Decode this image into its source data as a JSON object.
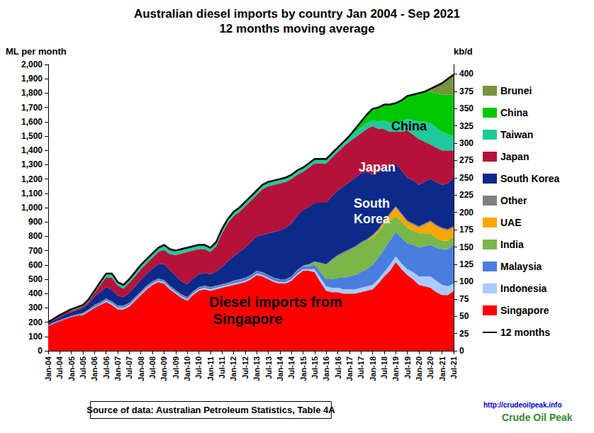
{
  "chart_data": {
    "type": "area",
    "title": "Australian diesel imports by country Jan 2004 - Sep 2021",
    "subtitle": "12 months moving average",
    "y_label": "ML per month",
    "y2_label": "kb/d",
    "stacked": true,
    "grid": false,
    "legend": "right",
    "categories": [
      "Jan-04",
      null,
      "Jul-04",
      null,
      "Jan-05",
      null,
      "Jul-05",
      null,
      "Jan-06",
      null,
      "Jul-06",
      null,
      "Jan-07",
      null,
      "Jul-07",
      null,
      "Jan-08",
      null,
      "Jul-08",
      null,
      "Jan-09",
      null,
      "Jul-09",
      null,
      "Jan-10",
      null,
      "Jul-10",
      null,
      "Jan-11",
      null,
      "Jul-11",
      null,
      "Jan-12",
      null,
      "Jul-12",
      null,
      "Jan-13",
      null,
      "Jul-13",
      null,
      "Jan-14",
      null,
      "Jul-14",
      null,
      "Jan-15",
      null,
      "Jul-15",
      null,
      "Jan-16",
      null,
      "Jul-16",
      null,
      "Jan-17",
      null,
      "Jul-17",
      null,
      "Jan-18",
      null,
      "Jul-18",
      null,
      "Jan-19",
      null,
      "Jul-19",
      null,
      "Jan-20",
      null,
      "Jul-20",
      null,
      "Jan-21",
      null,
      "Jul-21"
    ],
    "ylim": [
      0,
      2000
    ],
    "yticks": [
      0,
      100,
      200,
      300,
      400,
      500,
      600,
      700,
      800,
      900,
      {
        "value": 1000,
        "label": "1,000"
      },
      {
        "value": 1100,
        "label": "1,100"
      },
      {
        "value": 1200,
        "label": "1,200"
      },
      {
        "value": 1300,
        "label": "1,300"
      },
      {
        "value": 1400,
        "label": "1,400"
      },
      {
        "value": 1500,
        "label": "1,500"
      },
      {
        "value": 1600,
        "label": "1,600"
      },
      {
        "value": 1700,
        "label": "1,700"
      },
      {
        "value": 1800,
        "label": "1,800"
      },
      {
        "value": 1900,
        "label": "1,900"
      },
      {
        "value": 2000,
        "label": "2,000"
      }
    ],
    "y2lim": [
      0,
      413.7
    ],
    "y2ticks": [
      0,
      25,
      50,
      75,
      100,
      125,
      150,
      175,
      200,
      225,
      250,
      275,
      300,
      325,
      350,
      375,
      400
    ],
    "series": [
      {
        "name": "Brunei",
        "type": "area",
        "color": "#77933c",
        "values": [
          0,
          0,
          0,
          0,
          0,
          0,
          0,
          0,
          0,
          0,
          0,
          0,
          0,
          0,
          0,
          0,
          0,
          0,
          0,
          0,
          0,
          0,
          0,
          0,
          0,
          0,
          0,
          0,
          0,
          0,
          0,
          0,
          0,
          0,
          0,
          0,
          0,
          0,
          0,
          0,
          0,
          0,
          0,
          0,
          0,
          0,
          0,
          0,
          0,
          0,
          0,
          0,
          0,
          0,
          0,
          0,
          0,
          0,
          0,
          0,
          0,
          0,
          0,
          0,
          0,
          0,
          20,
          50,
          80,
          110,
          140
        ]
      },
      {
        "name": "China",
        "type": "area",
        "color": "#00c800",
        "values": [
          0,
          0,
          0,
          0,
          0,
          0,
          0,
          0,
          0,
          0,
          0,
          0,
          0,
          0,
          0,
          0,
          0,
          0,
          0,
          0,
          0,
          0,
          0,
          0,
          0,
          0,
          0,
          0,
          0,
          0,
          0,
          0,
          0,
          0,
          0,
          0,
          0,
          0,
          0,
          0,
          0,
          0,
          0,
          0,
          0,
          0,
          0,
          0,
          0,
          0,
          0,
          0,
          10,
          20,
          40,
          60,
          80,
          100,
          110,
          130,
          140,
          150,
          160,
          180,
          200,
          210,
          220,
          240,
          260,
          280,
          290
        ]
      },
      {
        "name": "Taiwan",
        "type": "area",
        "color": "#1fc99a",
        "values": [
          5,
          5,
          5,
          5,
          10,
          10,
          10,
          15,
          15,
          20,
          25,
          30,
          25,
          25,
          25,
          30,
          30,
          30,
          30,
          30,
          35,
          35,
          30,
          30,
          30,
          30,
          30,
          30,
          30,
          30,
          30,
          30,
          30,
          30,
          30,
          30,
          30,
          30,
          30,
          30,
          30,
          30,
          30,
          30,
          30,
          30,
          30,
          30,
          30,
          30,
          30,
          30,
          30,
          40,
          40,
          40,
          40,
          50,
          60,
          60,
          60,
          70,
          80,
          100,
          120,
          140,
          150,
          140,
          130,
          110,
          100
        ]
      },
      {
        "name": "Japan",
        "type": "area",
        "color": "#b5123a",
        "values": [
          5,
          5,
          10,
          10,
          10,
          10,
          10,
          15,
          25,
          50,
          70,
          85,
          70,
          60,
          70,
          70,
          75,
          70,
          75,
          85,
          100,
          110,
          145,
          195,
          225,
          195,
          175,
          165,
          155,
          175,
          235,
          265,
          280,
          280,
          290,
          290,
          290,
          320,
          330,
          330,
          330,
          320,
          310,
          285,
          265,
          275,
          275,
          275,
          275,
          270,
          270,
          280,
          280,
          280,
          280,
          300,
          340,
          300,
          270,
          240,
          220,
          270,
          330,
          320,
          320,
          280,
          240,
          240,
          240,
          230,
          190
        ]
      },
      {
        "name": "South Korea",
        "type": "area",
        "color": "#0c2a8a",
        "values": [
          10,
          15,
          20,
          25,
          25,
          30,
          35,
          40,
          60,
          70,
          80,
          80,
          70,
          60,
          70,
          75,
          80,
          85,
          90,
          100,
          110,
          110,
          100,
          90,
          90,
          90,
          90,
          90,
          90,
          100,
          120,
          150,
          170,
          190,
          210,
          230,
          240,
          260,
          290,
          320,
          340,
          360,
          370,
          380,
          390,
          400,
          410,
          420,
          430,
          440,
          450,
          460,
          470,
          480,
          480,
          470,
          420,
          400,
          370,
          330,
          300,
          300,
          300,
          300,
          290,
          290,
          290,
          300,
          300,
          320,
          340
        ]
      },
      {
        "name": "Other",
        "type": "area",
        "color": "#808080",
        "values": [
          5,
          5,
          5,
          5,
          5,
          5,
          5,
          5,
          5,
          5,
          5,
          5,
          5,
          5,
          5,
          5,
          5,
          5,
          5,
          5,
          5,
          5,
          5,
          5,
          5,
          5,
          5,
          5,
          5,
          5,
          5,
          5,
          5,
          5,
          5,
          5,
          5,
          5,
          5,
          5,
          5,
          5,
          5,
          5,
          5,
          5,
          5,
          5,
          5,
          10,
          10,
          10,
          10,
          10,
          10,
          10,
          10,
          10,
          10,
          10,
          10,
          10,
          10,
          10,
          10,
          10,
          10,
          10,
          10,
          10,
          10
        ]
      },
      {
        "name": "UAE",
        "type": "area",
        "color": "#ffa500",
        "values": [
          0,
          0,
          0,
          0,
          0,
          0,
          0,
          0,
          0,
          0,
          0,
          0,
          0,
          0,
          0,
          0,
          0,
          0,
          0,
          0,
          0,
          0,
          0,
          0,
          0,
          0,
          0,
          0,
          0,
          0,
          0,
          0,
          0,
          0,
          0,
          0,
          0,
          0,
          0,
          0,
          0,
          0,
          0,
          0,
          0,
          0,
          0,
          0,
          0,
          0,
          0,
          0,
          0,
          0,
          0,
          0,
          10,
          10,
          20,
          40,
          60,
          50,
          40,
          40,
          40,
          60,
          80,
          80,
          80,
          70,
          60
        ]
      },
      {
        "name": "India",
        "type": "area",
        "color": "#7ab648",
        "values": [
          0,
          0,
          0,
          0,
          0,
          0,
          0,
          0,
          0,
          0,
          0,
          0,
          0,
          0,
          0,
          0,
          0,
          0,
          0,
          0,
          0,
          0,
          0,
          0,
          0,
          0,
          0,
          0,
          0,
          0,
          0,
          0,
          0,
          0,
          0,
          0,
          0,
          0,
          0,
          0,
          0,
          0,
          0,
          0,
          0,
          10,
          20,
          60,
          100,
          130,
          150,
          170,
          180,
          190,
          200,
          200,
          190,
          180,
          170,
          140,
          110,
          110,
          110,
          100,
          100,
          90,
          80,
          70,
          60,
          60,
          60
        ]
      },
      {
        "name": "Malaysia",
        "type": "area",
        "color": "#4a7de0",
        "values": [
          5,
          5,
          5,
          5,
          5,
          5,
          5,
          5,
          10,
          10,
          10,
          10,
          10,
          10,
          10,
          10,
          10,
          10,
          10,
          10,
          10,
          10,
          10,
          10,
          10,
          10,
          10,
          10,
          10,
          10,
          10,
          10,
          15,
          15,
          15,
          15,
          15,
          15,
          15,
          15,
          15,
          15,
          15,
          20,
          20,
          20,
          30,
          40,
          50,
          60,
          70,
          80,
          90,
          100,
          110,
          120,
          140,
          150,
          160,
          170,
          170,
          180,
          180,
          190,
          200,
          210,
          220,
          230,
          250,
          260,
          270
        ]
      },
      {
        "name": "Indonesia",
        "type": "area",
        "color": "#a9cbff",
        "values": [
          0,
          0,
          0,
          0,
          0,
          0,
          5,
          5,
          5,
          5,
          10,
          10,
          10,
          10,
          10,
          10,
          10,
          10,
          10,
          10,
          10,
          10,
          10,
          10,
          10,
          10,
          10,
          10,
          10,
          10,
          10,
          10,
          10,
          10,
          10,
          10,
          10,
          10,
          10,
          10,
          10,
          10,
          10,
          10,
          10,
          10,
          20,
          30,
          30,
          30,
          30,
          30,
          30,
          30,
          30,
          30,
          30,
          30,
          30,
          40,
          40,
          40,
          40,
          50,
          60,
          70,
          80,
          80,
          70,
          60,
          50
        ]
      },
      {
        "name": "Singapore",
        "type": "area",
        "color": "#ff0000",
        "values": [
          170,
          190,
          205,
          220,
          235,
          245,
          250,
          275,
          300,
          320,
          340,
          320,
          290,
          290,
          310,
          350,
          390,
          430,
          460,
          480,
          470,
          430,
          400,
          370,
          350,
          390,
          420,
          430,
          420,
          430,
          440,
          450,
          460,
          470,
          480,
          500,
          530,
          520,
          500,
          480,
          470,
          470,
          490,
          530,
          560,
          560,
          550,
          480,
          420,
          410,
          410,
          400,
          400,
          400,
          410,
          420,
          430,
          470,
          520,
          560,
          620,
          570,
          530,
          500,
          460,
          450,
          440,
          410,
          390,
          390,
          420
        ]
      },
      {
        "name": "12 months",
        "type": "line",
        "color": "#000000",
        "values": [
          200,
          225,
          250,
          270,
          290,
          305,
          320,
          360,
          420,
          480,
          540,
          540,
          480,
          460,
          500,
          550,
          600,
          640,
          680,
          720,
          740,
          710,
          700,
          710,
          720,
          730,
          740,
          740,
          720,
          760,
          850,
          920,
          970,
          1000,
          1040,
          1080,
          1120,
          1160,
          1180,
          1190,
          1200,
          1210,
          1230,
          1260,
          1280,
          1310,
          1340,
          1340,
          1340,
          1380,
          1420,
          1460,
          1500,
          1550,
          1600,
          1650,
          1690,
          1700,
          1720,
          1720,
          1730,
          1750,
          1780,
          1790,
          1800,
          1810,
          1830,
          1850,
          1870,
          1900,
          1930
        ]
      }
    ],
    "annotations": [
      {
        "text": "China"
      },
      {
        "text": "Japan"
      },
      {
        "text": "South Korea"
      },
      {
        "text": "Diesel imports from Singapore"
      }
    ],
    "source": "Source of data: Australian Petroleum Statistics, Table 4A",
    "credit": [
      "http://crudeoilpeak.info",
      "Crude Oil Peak"
    ]
  }
}
